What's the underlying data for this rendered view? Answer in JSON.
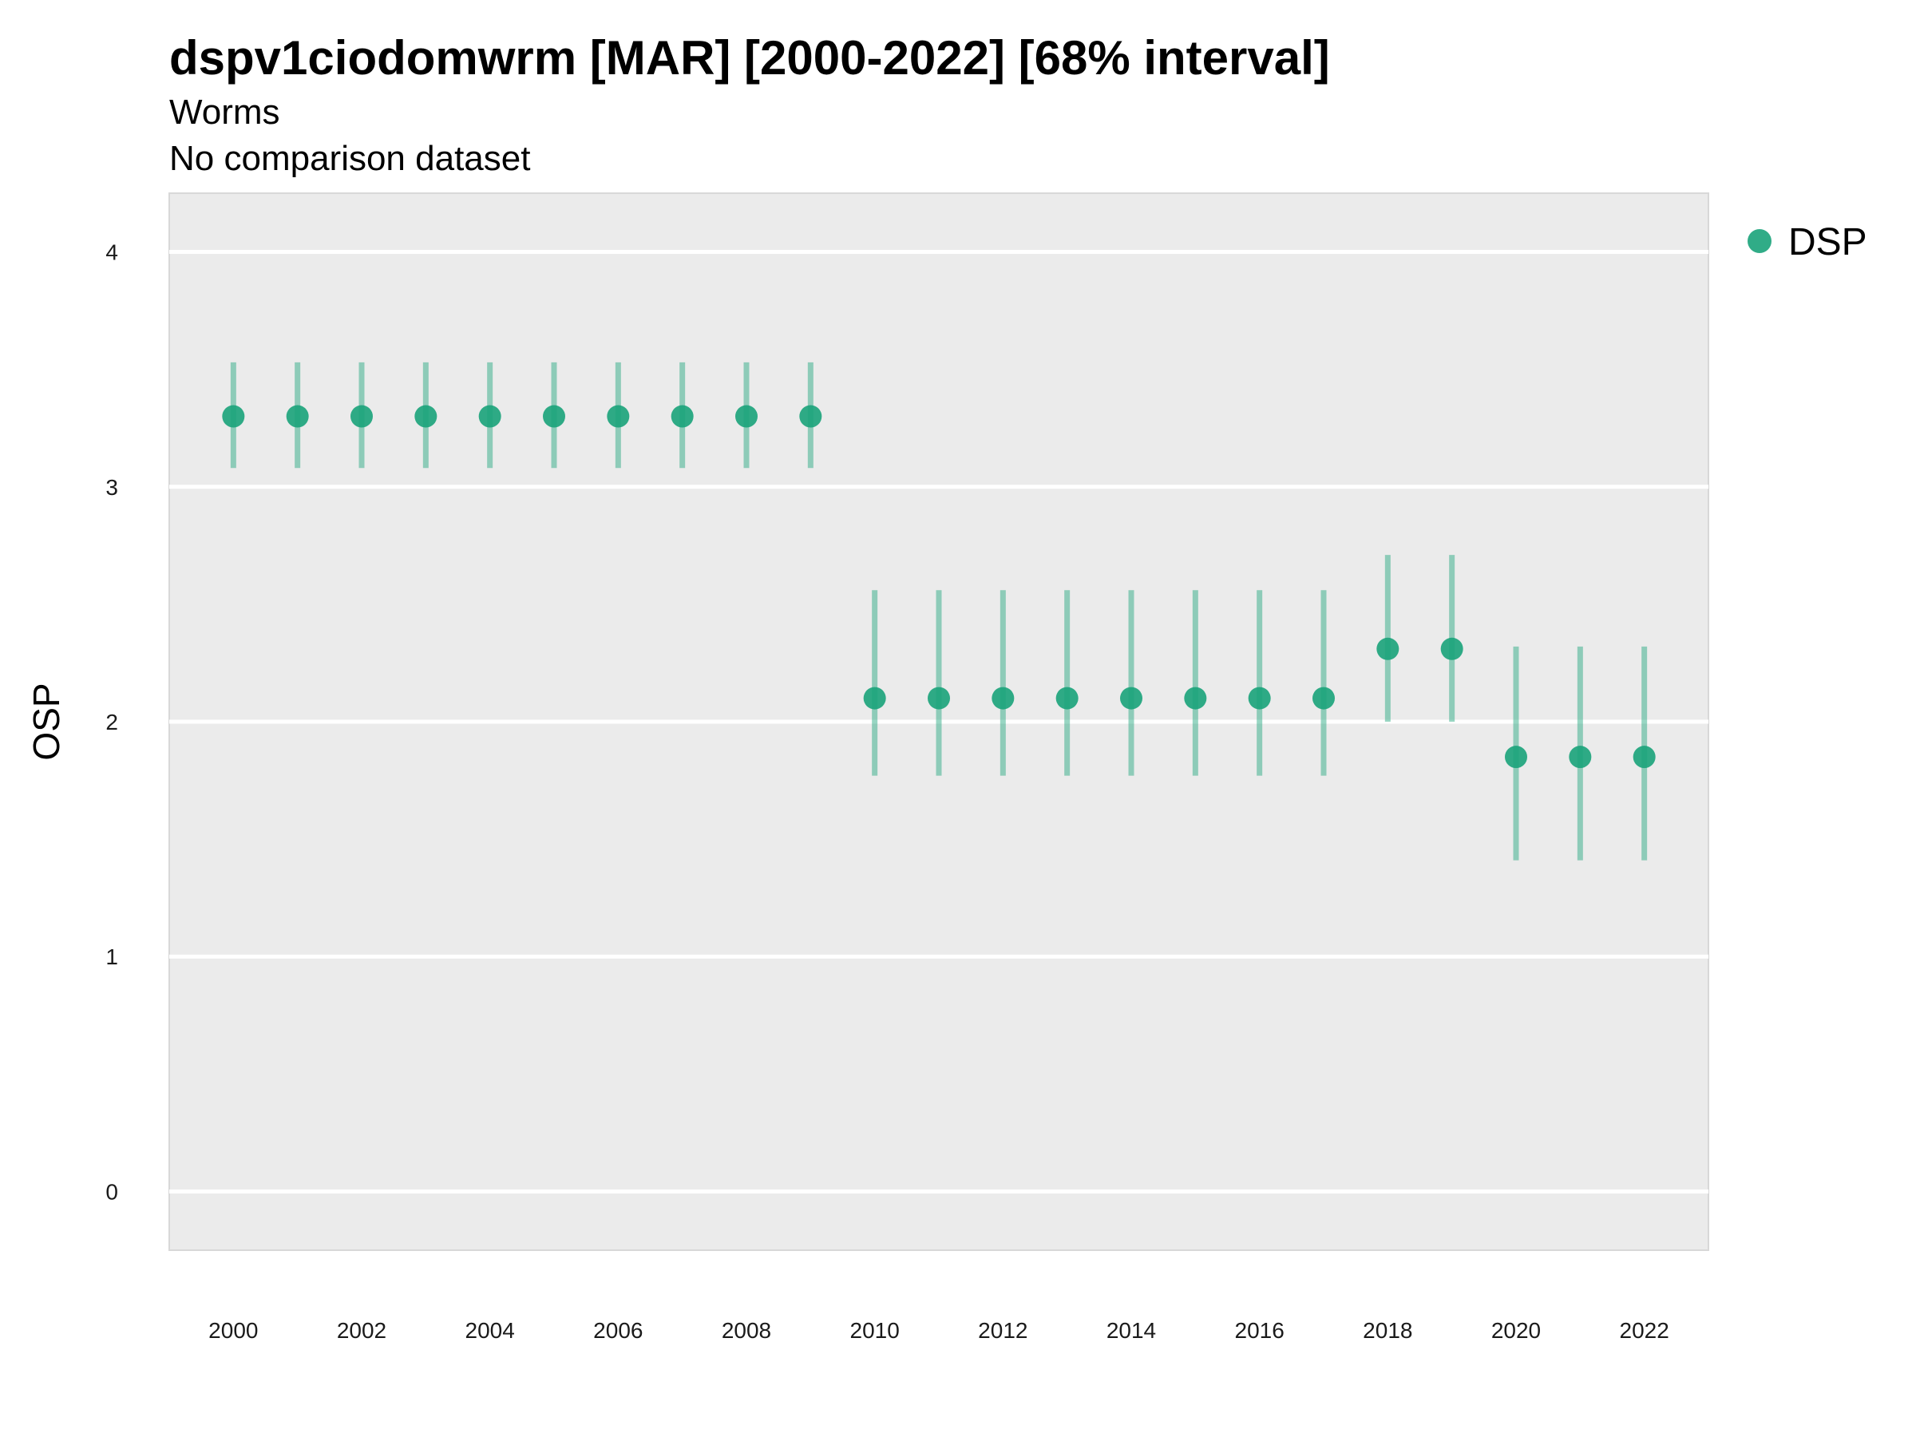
{
  "chart_data": {
    "type": "scatter",
    "title": "dspv1ciodomwrm [MAR] [2000-2022] [68% interval]",
    "subtitle": [
      "Worms",
      "No comparison dataset"
    ],
    "xlabel": "",
    "ylabel": "OSP",
    "xlim": [
      1999,
      2023
    ],
    "ylim": [
      -0.25,
      4.25
    ],
    "x_ticks": [
      2000,
      2002,
      2004,
      2006,
      2008,
      2010,
      2012,
      2014,
      2016,
      2018,
      2020,
      2022
    ],
    "y_ticks": [
      0,
      1,
      2,
      3,
      4
    ],
    "grid": true,
    "legend_position": "right",
    "series": [
      {
        "name": "DSP",
        "color": "#1aa37a",
        "x": [
          2000,
          2001,
          2002,
          2003,
          2004,
          2005,
          2006,
          2007,
          2008,
          2009,
          2010,
          2011,
          2012,
          2013,
          2014,
          2015,
          2016,
          2017,
          2018,
          2019,
          2020,
          2021,
          2022
        ],
        "y": [
          3.3,
          3.3,
          3.3,
          3.3,
          3.3,
          3.3,
          3.3,
          3.3,
          3.3,
          3.3,
          2.1,
          2.1,
          2.1,
          2.1,
          2.1,
          2.1,
          2.1,
          2.1,
          2.31,
          2.31,
          1.85,
          1.85,
          1.85
        ],
        "lower": [
          3.08,
          3.08,
          3.08,
          3.08,
          3.08,
          3.08,
          3.08,
          3.08,
          3.08,
          3.08,
          1.77,
          1.77,
          1.77,
          1.77,
          1.77,
          1.77,
          1.77,
          1.77,
          2.0,
          2.0,
          1.41,
          1.41,
          1.41
        ],
        "upper": [
          3.53,
          3.53,
          3.53,
          3.53,
          3.53,
          3.53,
          3.53,
          3.53,
          3.53,
          3.53,
          2.56,
          2.56,
          2.56,
          2.56,
          2.56,
          2.56,
          2.56,
          2.56,
          2.71,
          2.71,
          2.32,
          2.32,
          2.32
        ]
      }
    ]
  }
}
